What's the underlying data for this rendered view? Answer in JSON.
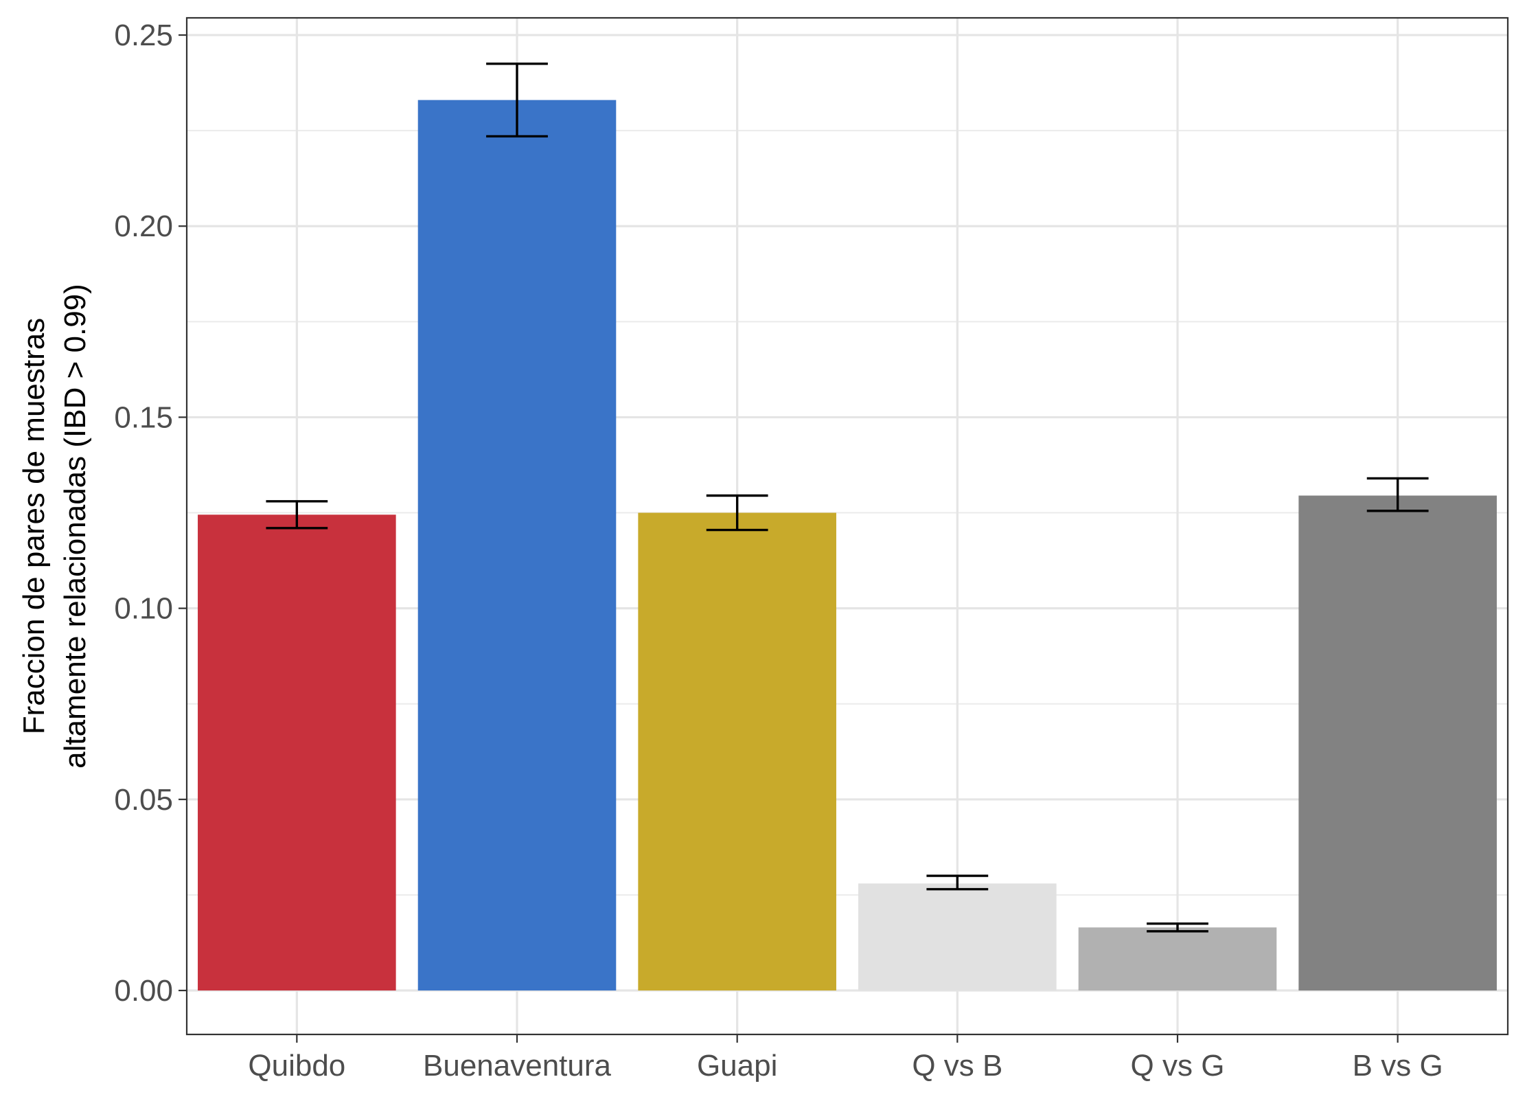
{
  "chart_data": {
    "type": "bar",
    "title": "",
    "xlabel": "",
    "ylabel_lines": [
      "Fraccion de pares de muestras",
      "altamente relacionadas (IBD > 0.99)"
    ],
    "categories": [
      "Quibdo",
      "Buenaventura",
      "Guapi",
      "Q vs B",
      "Q vs G",
      "B vs G"
    ],
    "values": [
      0.1245,
      0.233,
      0.125,
      0.028,
      0.0165,
      0.1295
    ],
    "error_low": [
      0.121,
      0.2235,
      0.1205,
      0.0265,
      0.0155,
      0.1255
    ],
    "error_high": [
      0.128,
      0.2425,
      0.1295,
      0.03,
      0.0175,
      0.134
    ],
    "colors": [
      "#c8313d",
      "#3a74c8",
      "#c8aa2b",
      "#e1e1e1",
      "#b1b1b1",
      "#828282"
    ],
    "ylim": [
      -0.0115,
      0.2545
    ],
    "yticks": [
      0.0,
      0.05,
      0.1,
      0.15,
      0.2,
      0.25
    ],
    "ytick_labels": [
      "0.00",
      "0.05",
      "0.10",
      "0.15",
      "0.20",
      "0.25"
    ],
    "grid": true,
    "legend": "none"
  }
}
